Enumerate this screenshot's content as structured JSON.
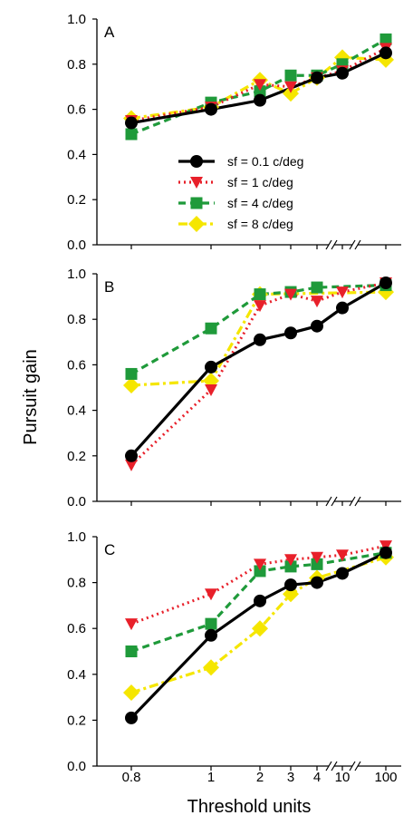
{
  "chart_data": {
    "type": "line",
    "ylabel": "Pursuit gain",
    "xlabel": "Threshold units",
    "x_tick_labels": [
      "0.8",
      "1",
      "2",
      "3",
      "4",
      "10",
      "100"
    ],
    "y_tick_labels": [
      "0.0",
      "0.2",
      "0.4",
      "0.6",
      "0.8",
      "1.0"
    ],
    "ylim": [
      0,
      1
    ],
    "x_axis_break": "between 4 and 10, and between 10 and 100",
    "legend": {
      "placement": "inside panel A, lower-right",
      "panel": "A"
    },
    "series_styles": [
      {
        "name": "sf = 0.1 c/deg",
        "color": "#000000",
        "marker": "circle",
        "line": "solid"
      },
      {
        "name": "sf = 1 c/deg",
        "color": "#e8202a",
        "marker": "triangle-down",
        "line": "dotted"
      },
      {
        "name": "sf = 4 c/deg",
        "color": "#1f9a3a",
        "marker": "square",
        "line": "dashed"
      },
      {
        "name": "sf = 8 c/deg",
        "color": "#f5e600",
        "marker": "diamond",
        "line": "dash-dot"
      }
    ],
    "panels": [
      {
        "label": "A",
        "series": [
          {
            "name": "sf = 0.1 c/deg",
            "x": [
              "0.8",
              "1",
              "2",
              "4",
              "10",
              "100"
            ],
            "values": [
              0.54,
              0.6,
              0.64,
              0.74,
              0.76,
              0.85
            ]
          },
          {
            "name": "sf = 1 c/deg",
            "x": [
              "0.8",
              "1",
              "2",
              "3",
              "4",
              "10",
              "100"
            ],
            "values": [
              0.55,
              0.61,
              0.71,
              0.7,
              0.74,
              0.77,
              0.87
            ]
          },
          {
            "name": "sf = 4 c/deg",
            "x": [
              "0.8",
              "1",
              "2",
              "3",
              "4",
              "10",
              "100"
            ],
            "values": [
              0.49,
              0.63,
              0.68,
              0.75,
              0.75,
              0.8,
              0.91
            ]
          },
          {
            "name": "sf = 8 c/deg",
            "x": [
              "0.8",
              "1",
              "2",
              "3",
              "4",
              "10",
              "100"
            ],
            "values": [
              0.56,
              0.61,
              0.73,
              0.67,
              0.74,
              0.83,
              0.82
            ]
          }
        ]
      },
      {
        "label": "B",
        "series": [
          {
            "name": "sf = 0.1 c/deg",
            "x": [
              "0.8",
              "1",
              "2",
              "3",
              "4",
              "10",
              "100"
            ],
            "values": [
              0.2,
              0.59,
              0.71,
              0.74,
              0.77,
              0.85,
              0.96
            ]
          },
          {
            "name": "sf = 1 c/deg",
            "x": [
              "0.8",
              "1",
              "2",
              "3",
              "4",
              "10",
              "100"
            ],
            "values": [
              0.16,
              0.49,
              0.86,
              0.91,
              0.88,
              0.92,
              0.96
            ]
          },
          {
            "name": "sf = 4 c/deg",
            "x": [
              "0.8",
              "1",
              "2",
              "3",
              "4",
              "100"
            ],
            "values": [
              0.56,
              0.76,
              0.91,
              0.92,
              0.94,
              0.95
            ]
          },
          {
            "name": "sf = 8 c/deg",
            "x": [
              "0.8",
              "1",
              "2",
              "100"
            ],
            "values": [
              0.51,
              0.53,
              0.91,
              0.92
            ]
          }
        ]
      },
      {
        "label": "C",
        "series": [
          {
            "name": "sf = 0.1 c/deg",
            "x": [
              "0.8",
              "1",
              "2",
              "3",
              "4",
              "10",
              "100"
            ],
            "values": [
              0.21,
              0.57,
              0.72,
              0.79,
              0.8,
              0.84,
              0.93
            ]
          },
          {
            "name": "sf = 1 c/deg",
            "x": [
              "0.8",
              "1",
              "2",
              "3",
              "4",
              "10",
              "100"
            ],
            "values": [
              0.62,
              0.75,
              0.88,
              0.9,
              0.91,
              0.92,
              0.96
            ]
          },
          {
            "name": "sf = 4 c/deg",
            "x": [
              "0.8",
              "1",
              "2",
              "3",
              "4",
              "100"
            ],
            "values": [
              0.5,
              0.62,
              0.85,
              0.87,
              0.88,
              0.93
            ]
          },
          {
            "name": "sf = 8 c/deg",
            "x": [
              "0.8",
              "1",
              "2",
              "3",
              "4",
              "100"
            ],
            "values": [
              0.32,
              0.43,
              0.6,
              0.75,
              0.82,
              0.91
            ]
          }
        ]
      }
    ]
  }
}
